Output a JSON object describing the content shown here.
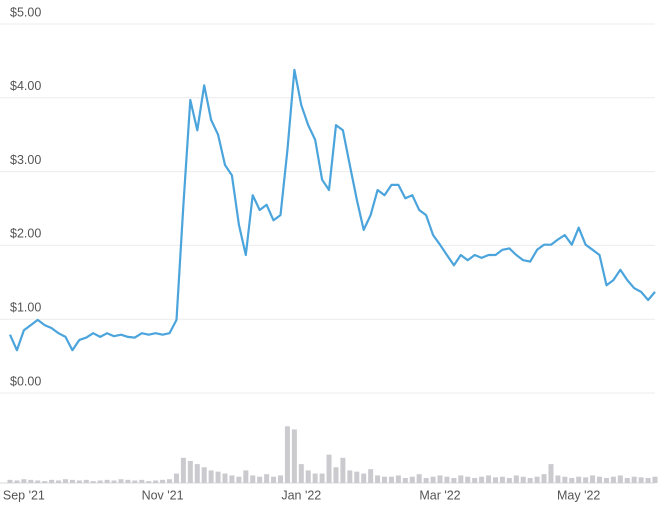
{
  "chart_data": {
    "type": "line",
    "color": "#4ba4dc",
    "volume_color": "#cacacf",
    "grid": true,
    "ylim": [
      0,
      5
    ],
    "yticks": [
      {
        "value": 0,
        "label": "$0.00"
      },
      {
        "value": 1,
        "label": "$1.00"
      },
      {
        "value": 2,
        "label": "$2.00"
      },
      {
        "value": 3,
        "label": "$3.00"
      },
      {
        "value": 4,
        "label": "$4.00"
      },
      {
        "value": 5,
        "label": "$5.00"
      }
    ],
    "y2lim": [
      0,
      100
    ],
    "categories": [
      null,
      null,
      "Sep '21",
      null,
      null,
      null,
      null,
      null,
      null,
      null,
      null,
      null,
      null,
      null,
      null,
      null,
      null,
      null,
      null,
      null,
      null,
      null,
      "Nov '21",
      null,
      null,
      null,
      null,
      null,
      null,
      null,
      null,
      null,
      null,
      null,
      null,
      null,
      null,
      null,
      null,
      null,
      null,
      null,
      "Jan '22",
      null,
      null,
      null,
      null,
      null,
      null,
      null,
      null,
      null,
      null,
      null,
      null,
      null,
      null,
      null,
      null,
      null,
      null,
      null,
      "Mar '22",
      null,
      null,
      null,
      null,
      null,
      null,
      null,
      null,
      null,
      null,
      null,
      null,
      null,
      null,
      null,
      null,
      null,
      null,
      null,
      "May '22",
      null,
      null,
      null,
      null,
      null,
      null,
      null,
      null,
      null,
      null,
      null
    ],
    "values": [
      0.79,
      0.58,
      0.85,
      0.92,
      0.99,
      0.92,
      0.88,
      0.81,
      0.76,
      0.58,
      0.72,
      0.75,
      0.81,
      0.76,
      0.81,
      0.77,
      0.79,
      0.76,
      0.75,
      0.81,
      0.79,
      0.81,
      0.79,
      0.81,
      0.99,
      2.55,
      3.97,
      3.56,
      4.17,
      3.7,
      3.5,
      3.09,
      2.95,
      2.28,
      1.87,
      2.68,
      2.48,
      2.55,
      2.34,
      2.41,
      3.29,
      4.38,
      3.9,
      3.63,
      3.43,
      2.89,
      2.75,
      3.63,
      3.56,
      3.09,
      2.62,
      2.21,
      2.41,
      2.75,
      2.68,
      2.82,
      2.82,
      2.64,
      2.68,
      2.48,
      2.41,
      2.14,
      2.01,
      1.87,
      1.73,
      1.87,
      1.8,
      1.87,
      1.83,
      1.87,
      1.87,
      1.94,
      1.96,
      1.87,
      1.8,
      1.78,
      1.94,
      2.01,
      2.01,
      2.08,
      2.14,
      2.01,
      2.24,
      2.01,
      1.94,
      1.87,
      1.46,
      1.53,
      1.67,
      1.53,
      1.42,
      1.37,
      1.26,
      1.37
    ],
    "volume": [
      5,
      4,
      6,
      5,
      4,
      3,
      5,
      4,
      6,
      5,
      4,
      5,
      3,
      4,
      5,
      4,
      6,
      5,
      4,
      5,
      3,
      4,
      5,
      6,
      15,
      40,
      35,
      30,
      25,
      20,
      18,
      15,
      12,
      10,
      20,
      12,
      10,
      14,
      10,
      12,
      90,
      85,
      30,
      20,
      15,
      15,
      45,
      25,
      40,
      20,
      18,
      15,
      22,
      12,
      10,
      10,
      12,
      8,
      10,
      14,
      8,
      10,
      12,
      10,
      8,
      12,
      10,
      8,
      10,
      12,
      9,
      10,
      8,
      12,
      10,
      8,
      10,
      14,
      30,
      12,
      10,
      8,
      10,
      9,
      12,
      10,
      8,
      10,
      12,
      8,
      10,
      9,
      8,
      10
    ]
  }
}
